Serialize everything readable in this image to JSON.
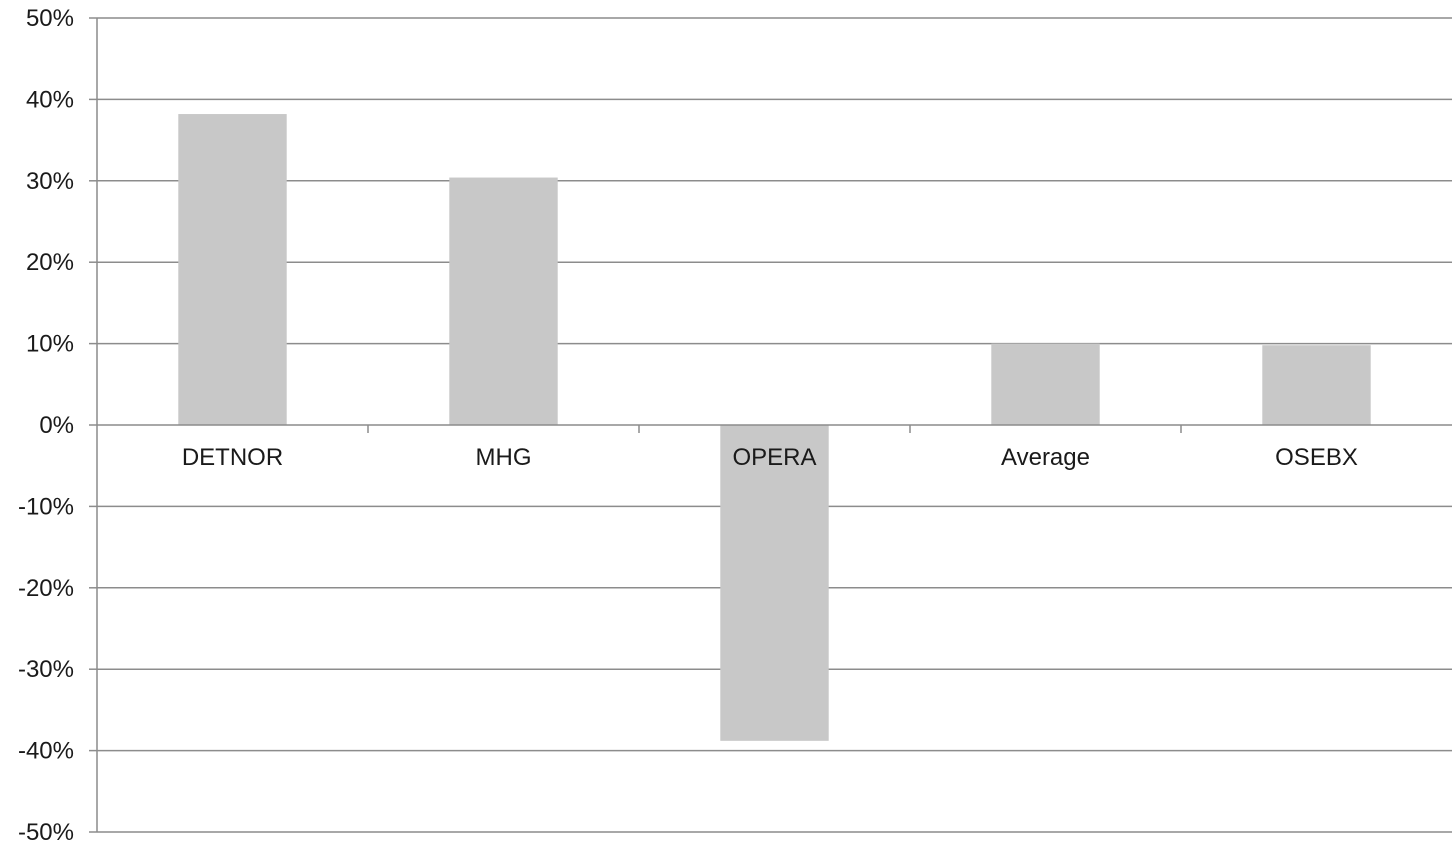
{
  "chart_data": {
    "type": "bar",
    "categories": [
      "DETNOR",
      "MHG",
      "OPERA",
      "Average",
      "OSEBX"
    ],
    "values": [
      38.2,
      30.4,
      -38.8,
      10.0,
      9.8
    ],
    "ylim": [
      -50,
      50
    ],
    "yticks": [
      {
        "value": 50,
        "label": "50%"
      },
      {
        "value": 40,
        "label": "40%"
      },
      {
        "value": 30,
        "label": "30%"
      },
      {
        "value": 20,
        "label": "20%"
      },
      {
        "value": 10,
        "label": "10%"
      },
      {
        "value": 0,
        "label": "0%"
      },
      {
        "value": -10,
        "label": "-10%"
      },
      {
        "value": -20,
        "label": "-20%"
      },
      {
        "value": -30,
        "label": "-30%"
      },
      {
        "value": -40,
        "label": "-40%"
      },
      {
        "value": -50,
        "label": "-50%"
      }
    ],
    "grid": true,
    "legend": "none",
    "colors": {
      "bar": "#c8c8c8",
      "grid": "#8c8c8c",
      "axis": "#8c8c8c",
      "text": "#1a1a1a"
    }
  }
}
